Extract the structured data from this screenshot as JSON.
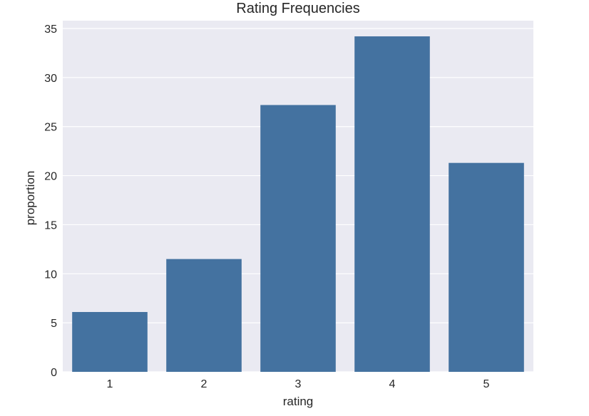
{
  "chart_data": {
    "type": "bar",
    "title": "Rating Frequencies",
    "xlabel": "rating",
    "ylabel": "proportion",
    "categories": [
      "1",
      "2",
      "3",
      "4",
      "5"
    ],
    "values": [
      6.1,
      11.5,
      27.2,
      34.2,
      21.3
    ],
    "ylim": [
      0,
      35.8
    ],
    "yticks": [
      "0",
      "5",
      "10",
      "15",
      "20",
      "25",
      "30",
      "35"
    ],
    "grid": true,
    "colors": {
      "bar": "#4472a0",
      "background": "#eaeaf2",
      "grid": "#ffffff",
      "text": "#262626"
    }
  }
}
